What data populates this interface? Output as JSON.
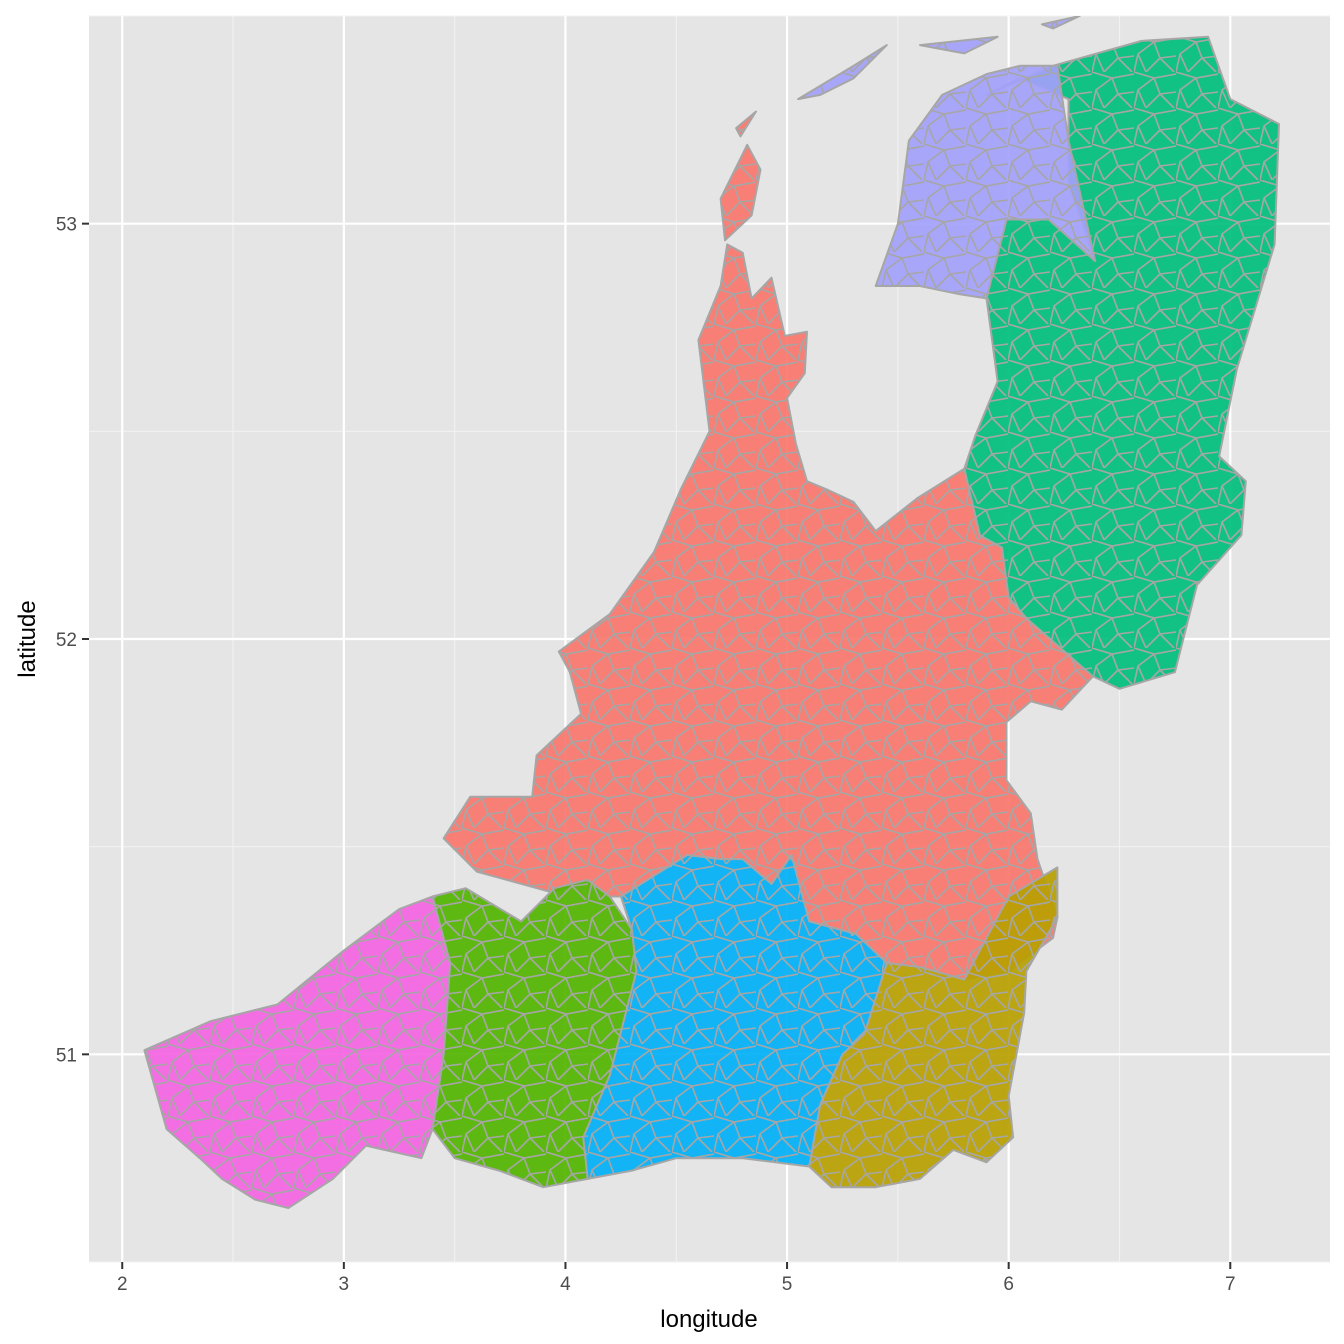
{
  "chart_data": {
    "type": "choropleth-map",
    "title": "",
    "xlabel": "longitude",
    "ylabel": "latitude",
    "xlim": [
      1.85,
      7.45
    ],
    "ylim": [
      50.5,
      53.5
    ],
    "x_ticks": [
      2,
      3,
      4,
      5,
      6,
      7
    ],
    "y_ticks": [
      51,
      52,
      53
    ],
    "grid": true,
    "legend": "none",
    "cell_border_color": "#a6a6a6",
    "panel_background": "#e5e5e5",
    "regions": [
      {
        "name": "red-region",
        "color": "#f8766d",
        "polygons": [
          [
            [
              4.7,
              53.06
            ],
            [
              4.82,
              53.19
            ],
            [
              4.88,
              53.13
            ],
            [
              4.84,
              53.02
            ],
            [
              4.72,
              52.96
            ]
          ],
          [
            [
              4.77,
              53.23
            ],
            [
              4.86,
              53.27
            ],
            [
              4.79,
              53.21
            ]
          ],
          [
            [
              4.73,
              52.95
            ],
            [
              4.8,
              52.93
            ],
            [
              4.84,
              52.82
            ],
            [
              4.93,
              52.87
            ],
            [
              4.99,
              52.73
            ],
            [
              5.09,
              52.74
            ],
            [
              5.08,
              52.64
            ],
            [
              5.0,
              52.58
            ],
            [
              5.04,
              52.47
            ],
            [
              5.09,
              52.38
            ],
            [
              5.18,
              52.36
            ],
            [
              5.3,
              52.33
            ],
            [
              5.4,
              52.26
            ],
            [
              5.59,
              52.34
            ],
            [
              5.8,
              52.41
            ],
            [
              5.87,
              52.25
            ],
            [
              5.97,
              52.22
            ],
            [
              6.0,
              52.1
            ],
            [
              6.08,
              52.05
            ],
            [
              6.38,
              51.91
            ],
            [
              6.24,
              51.83
            ],
            [
              6.1,
              51.85
            ],
            [
              5.99,
              51.8
            ],
            [
              5.99,
              51.66
            ],
            [
              6.1,
              51.58
            ],
            [
              6.13,
              51.47
            ],
            [
              6.22,
              51.33
            ],
            [
              6.2,
              51.28
            ],
            [
              6.0,
              51.2
            ],
            [
              5.8,
              51.18
            ],
            [
              5.6,
              51.21
            ],
            [
              5.45,
              51.22
            ],
            [
              5.31,
              51.29
            ],
            [
              5.1,
              51.32
            ],
            [
              5.02,
              51.48
            ],
            [
              4.93,
              51.41
            ],
            [
              4.8,
              51.47
            ],
            [
              4.7,
              51.47
            ],
            [
              4.55,
              51.48
            ],
            [
              4.4,
              51.43
            ],
            [
              4.25,
              51.38
            ],
            [
              4.2,
              51.38
            ],
            [
              4.1,
              51.42
            ],
            [
              3.94,
              51.39
            ],
            [
              3.6,
              51.44
            ],
            [
              3.45,
              51.52
            ],
            [
              3.57,
              51.62
            ],
            [
              3.85,
              51.62
            ],
            [
              3.87,
              51.72
            ],
            [
              4.07,
              51.82
            ],
            [
              4.02,
              51.92
            ],
            [
              3.97,
              51.97
            ],
            [
              4.2,
              52.06
            ],
            [
              4.4,
              52.21
            ],
            [
              4.52,
              52.36
            ],
            [
              4.65,
              52.5
            ],
            [
              4.6,
              52.72
            ],
            [
              4.7,
              52.85
            ]
          ]
        ]
      },
      {
        "name": "teal-region",
        "color": "#00bf7d",
        "polygons": [
          [
            [
              5.9,
              53.31
            ],
            [
              6.2,
              53.38
            ],
            [
              6.6,
              53.44
            ],
            [
              6.9,
              53.45
            ],
            [
              7.0,
              53.3
            ],
            [
              7.22,
              53.24
            ],
            [
              7.2,
              52.95
            ],
            [
              7.03,
              52.65
            ],
            [
              6.95,
              52.44
            ],
            [
              7.07,
              52.38
            ],
            [
              7.05,
              52.25
            ],
            [
              6.85,
              52.13
            ],
            [
              6.75,
              51.92
            ],
            [
              6.5,
              51.88
            ],
            [
              6.38,
              51.91
            ],
            [
              6.08,
              52.05
            ],
            [
              6.0,
              52.1
            ],
            [
              5.97,
              52.22
            ],
            [
              5.87,
              52.25
            ],
            [
              5.8,
              52.41
            ],
            [
              5.85,
              52.49
            ],
            [
              5.95,
              52.62
            ],
            [
              5.9,
              52.82
            ],
            [
              5.99,
              53.01
            ],
            [
              6.18,
              53.01
            ],
            [
              6.39,
              52.91
            ],
            [
              6.27,
              53.1
            ],
            [
              6.27,
              53.3
            ],
            [
              6.05,
              53.35
            ]
          ]
        ]
      },
      {
        "name": "purple-region",
        "color": "#a3a1fb",
        "polygons": [
          [
            [
              5.4,
              52.85
            ],
            [
              5.5,
              53.0
            ],
            [
              5.55,
              53.2
            ],
            [
              5.7,
              53.31
            ],
            [
              5.9,
              53.36
            ],
            [
              6.05,
              53.38
            ],
            [
              6.22,
              53.38
            ],
            [
              6.27,
              53.2
            ],
            [
              6.39,
              52.91
            ],
            [
              6.18,
              53.01
            ],
            [
              5.99,
              53.01
            ],
            [
              5.9,
              52.82
            ],
            [
              5.78,
              52.83
            ],
            [
              5.6,
              52.85
            ]
          ],
          [
            [
              5.05,
              53.3
            ],
            [
              5.3,
              53.38
            ],
            [
              5.45,
              53.43
            ],
            [
              5.3,
              53.35
            ],
            [
              5.15,
              53.31
            ]
          ],
          [
            [
              5.6,
              53.43
            ],
            [
              5.95,
              53.45
            ],
            [
              5.8,
              53.41
            ]
          ],
          [
            [
              6.15,
              53.48
            ],
            [
              6.32,
              53.5
            ],
            [
              6.2,
              53.47
            ]
          ]
        ]
      },
      {
        "name": "yellow-region",
        "color": "#b79f00",
        "polygons": [
          [
            [
              5.45,
              51.22
            ],
            [
              5.6,
              51.21
            ],
            [
              5.8,
              51.18
            ],
            [
              5.95,
              51.33
            ],
            [
              6.0,
              51.38
            ],
            [
              6.22,
              51.45
            ],
            [
              6.22,
              51.33
            ],
            [
              6.08,
              51.2
            ],
            [
              6.07,
              51.1
            ],
            [
              6.0,
              50.9
            ],
            [
              6.02,
              50.8
            ],
            [
              5.9,
              50.74
            ],
            [
              5.75,
              50.77
            ],
            [
              5.6,
              50.7
            ],
            [
              5.4,
              50.68
            ],
            [
              5.2,
              50.68
            ],
            [
              5.1,
              50.73
            ],
            [
              5.15,
              50.88
            ],
            [
              5.25,
              51.0
            ],
            [
              5.35,
              51.05
            ]
          ]
        ]
      },
      {
        "name": "blue-region",
        "color": "#00b0f6",
        "polygons": [
          [
            [
              4.25,
              51.38
            ],
            [
              4.4,
              51.43
            ],
            [
              4.55,
              51.48
            ],
            [
              4.7,
              51.47
            ],
            [
              4.8,
              51.47
            ],
            [
              4.93,
              51.41
            ],
            [
              5.02,
              51.48
            ],
            [
              5.1,
              51.32
            ],
            [
              5.31,
              51.29
            ],
            [
              5.45,
              51.22
            ],
            [
              5.35,
              51.05
            ],
            [
              5.25,
              51.0
            ],
            [
              5.15,
              50.88
            ],
            [
              5.1,
              50.73
            ],
            [
              4.8,
              50.75
            ],
            [
              4.5,
              50.75
            ],
            [
              4.3,
              50.72
            ],
            [
              4.1,
              50.7
            ],
            [
              4.08,
              50.8
            ],
            [
              4.2,
              50.95
            ],
            [
              4.32,
              51.2
            ],
            [
              4.3,
              51.3
            ]
          ]
        ]
      },
      {
        "name": "green-region",
        "color": "#53b400",
        "polygons": [
          [
            [
              3.4,
              51.38
            ],
            [
              3.55,
              51.4
            ],
            [
              3.8,
              51.32
            ],
            [
              3.95,
              51.4
            ],
            [
              4.1,
              51.42
            ],
            [
              4.2,
              51.38
            ],
            [
              4.3,
              51.3
            ],
            [
              4.32,
              51.2
            ],
            [
              4.2,
              50.95
            ],
            [
              4.08,
              50.8
            ],
            [
              4.1,
              50.7
            ],
            [
              3.9,
              50.68
            ],
            [
              3.7,
              50.72
            ],
            [
              3.5,
              50.75
            ],
            [
              3.4,
              50.82
            ],
            [
              3.45,
              51.0
            ],
            [
              3.48,
              51.22
            ]
          ]
        ]
      },
      {
        "name": "pink-region",
        "color": "#f564e3",
        "polygons": [
          [
            [
              2.1,
              51.01
            ],
            [
              2.4,
              51.08
            ],
            [
              2.7,
              51.12
            ],
            [
              3.0,
              51.25
            ],
            [
              3.25,
              51.35
            ],
            [
              3.4,
              51.38
            ],
            [
              3.48,
              51.22
            ],
            [
              3.45,
              51.0
            ],
            [
              3.4,
              50.82
            ],
            [
              3.35,
              50.75
            ],
            [
              3.1,
              50.78
            ],
            [
              2.95,
              50.7
            ],
            [
              2.75,
              50.63
            ],
            [
              2.6,
              50.65
            ],
            [
              2.45,
              50.7
            ],
            [
              2.35,
              50.75
            ],
            [
              2.2,
              50.82
            ]
          ]
        ]
      }
    ]
  }
}
